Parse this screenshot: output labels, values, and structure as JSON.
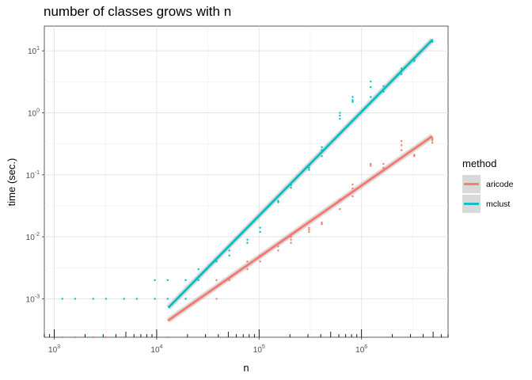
{
  "chart_data": {
    "type": "scatter",
    "title": "number of classes grows with n",
    "xlabel": "n",
    "ylabel": "time (sec.)",
    "xscale": "log10",
    "yscale": "log10",
    "xlim": [
      800,
      7000000
    ],
    "ylim": [
      0.00024,
      25
    ],
    "x_ticks": [
      {
        "base": "10",
        "exp": "3",
        "value": 1000
      },
      {
        "base": "10",
        "exp": "4",
        "value": 10000
      },
      {
        "base": "10",
        "exp": "5",
        "value": 100000
      },
      {
        "base": "10",
        "exp": "6",
        "value": 1000000
      }
    ],
    "y_ticks": [
      {
        "base": "10",
        "exp": "-3",
        "value": 0.001
      },
      {
        "base": "10",
        "exp": "-2",
        "value": 0.01
      },
      {
        "base": "10",
        "exp": "-1",
        "value": 0.1
      },
      {
        "base": "10",
        "exp": "0",
        "value": 1
      },
      {
        "base": "10",
        "exp": "1",
        "value": 10
      }
    ],
    "grid": true,
    "rug": "x",
    "legend": {
      "title": "method",
      "position": "right"
    },
    "series": [
      {
        "name": "aricode",
        "color": "#F8766D",
        "points": [
          [
            1200,
            0.00024
          ],
          [
            1600,
            0.00024
          ],
          [
            2400,
            0.00024
          ],
          [
            3200,
            0.00024
          ],
          [
            4800,
            0.00024
          ],
          [
            6400,
            0.00024
          ],
          [
            9600,
            0.00024
          ],
          [
            12800,
            0.00024
          ],
          [
            13000,
            0.00045
          ],
          [
            19200,
            0.001
          ],
          [
            25600,
            0.001
          ],
          [
            38400,
            0.001
          ],
          [
            38400,
            0.002
          ],
          [
            51200,
            0.002
          ],
          [
            76800,
            0.003
          ],
          [
            76800,
            0.004
          ],
          [
            102400,
            0.004
          ],
          [
            102400,
            0.005
          ],
          [
            153600,
            0.006
          ],
          [
            153600,
            0.007
          ],
          [
            204800,
            0.008
          ],
          [
            204800,
            0.009
          ],
          [
            204800,
            0.01
          ],
          [
            307200,
            0.012
          ],
          [
            307200,
            0.013
          ],
          [
            307200,
            0.014
          ],
          [
            409600,
            0.016
          ],
          [
            409600,
            0.017
          ],
          [
            614400,
            0.028
          ],
          [
            614400,
            0.04
          ],
          [
            819200,
            0.045
          ],
          [
            819200,
            0.06
          ],
          [
            819200,
            0.07
          ],
          [
            1228800,
            0.14
          ],
          [
            1228800,
            0.15
          ],
          [
            1638400,
            0.12
          ],
          [
            1638400,
            0.13
          ],
          [
            1638400,
            0.15
          ],
          [
            2457600,
            0.25
          ],
          [
            2457600,
            0.3
          ],
          [
            2457600,
            0.35
          ],
          [
            3276800,
            0.2
          ],
          [
            3276800,
            0.21
          ],
          [
            4915200,
            0.33
          ],
          [
            4915200,
            0.36
          ],
          [
            4915200,
            0.38
          ]
        ],
        "fit": [
          [
            13000,
            0.00045
          ],
          [
            4915200,
            0.42
          ]
        ]
      },
      {
        "name": "mclust",
        "color": "#00BFC4",
        "points": [
          [
            1200,
            0.001
          ],
          [
            1600,
            0.001
          ],
          [
            2400,
            0.001
          ],
          [
            3200,
            0.001
          ],
          [
            4800,
            0.001
          ],
          [
            6400,
            0.001
          ],
          [
            9600,
            0.001
          ],
          [
            9600,
            0.002
          ],
          [
            12800,
            0.001
          ],
          [
            12800,
            0.002
          ],
          [
            19200,
            0.001
          ],
          [
            19200,
            0.002
          ],
          [
            25600,
            0.002
          ],
          [
            25600,
            0.003
          ],
          [
            38400,
            0.004
          ],
          [
            51200,
            0.005
          ],
          [
            51200,
            0.006
          ],
          [
            76800,
            0.008
          ],
          [
            76800,
            0.009
          ],
          [
            102400,
            0.012
          ],
          [
            102400,
            0.014
          ],
          [
            153600,
            0.036
          ],
          [
            153600,
            0.038
          ],
          [
            204800,
            0.062
          ],
          [
            204800,
            0.068
          ],
          [
            307200,
            0.12
          ],
          [
            307200,
            0.13
          ],
          [
            307200,
            0.14
          ],
          [
            409600,
            0.2
          ],
          [
            409600,
            0.25
          ],
          [
            409600,
            0.28
          ],
          [
            614400,
            0.8
          ],
          [
            614400,
            0.9
          ],
          [
            614400,
            1.0
          ],
          [
            819200,
            1.5
          ],
          [
            819200,
            1.6
          ],
          [
            819200,
            1.8
          ],
          [
            1228800,
            1.8
          ],
          [
            1228800,
            2.6
          ],
          [
            1228800,
            3.2
          ],
          [
            1638400,
            2.2
          ],
          [
            1638400,
            2.4
          ],
          [
            1638400,
            2.7
          ],
          [
            2457600,
            4.2
          ],
          [
            2457600,
            4.8
          ],
          [
            2457600,
            5.2
          ],
          [
            3276800,
            6.8
          ],
          [
            3276800,
            7.2
          ],
          [
            4915200,
            14.0
          ],
          [
            4915200,
            15.0
          ]
        ],
        "fit": [
          [
            13000,
            0.00072
          ],
          [
            4915200,
            15.0
          ]
        ]
      }
    ]
  }
}
